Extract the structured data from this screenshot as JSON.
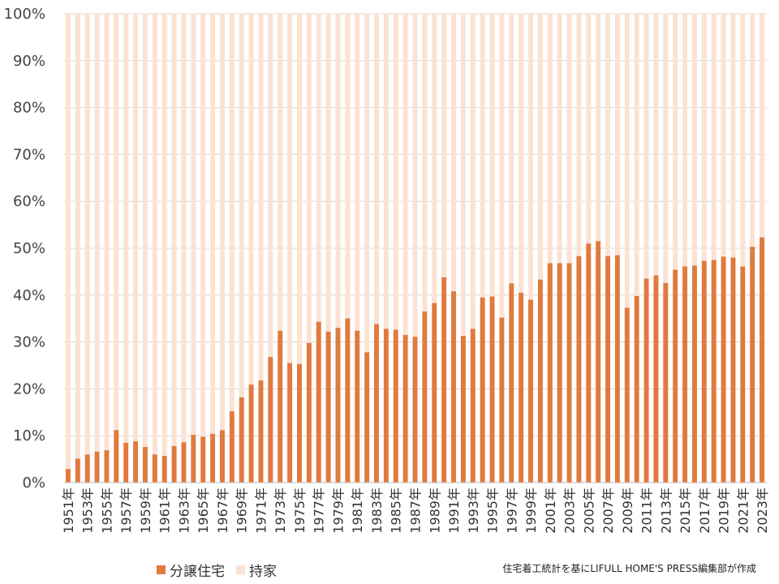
{
  "chart_data": {
    "type": "bar",
    "stacked": true,
    "percent": true,
    "categories": [
      "1951年",
      "1952年",
      "1953年",
      "1954年",
      "1955年",
      "1956年",
      "1957年",
      "1958年",
      "1959年",
      "1960年",
      "1961年",
      "1962年",
      "1963年",
      "1964年",
      "1965年",
      "1966年",
      "1967年",
      "1968年",
      "1969年",
      "1970年",
      "1971年",
      "1972年",
      "1973年",
      "1974年",
      "1975年",
      "1976年",
      "1977年",
      "1978年",
      "1979年",
      "1980年",
      "1981年",
      "1982年",
      "1983年",
      "1984年",
      "1985年",
      "1986年",
      "1987年",
      "1988年",
      "1989年",
      "1990年",
      "1991年",
      "1992年",
      "1993年",
      "1994年",
      "1995年",
      "1996年",
      "1997年",
      "1998年",
      "1999年",
      "2000年",
      "2001年",
      "2002年",
      "2003年",
      "2004年",
      "2005年",
      "2006年",
      "2007年",
      "2008年",
      "2009年",
      "2010年",
      "2011年",
      "2012年",
      "2013年",
      "2014年",
      "2015年",
      "2016年",
      "2017年",
      "2018年",
      "2019年",
      "2020年",
      "2021年",
      "2022年",
      "2023年"
    ],
    "tick_labels": [
      "1951年",
      "1953年",
      "1955年",
      "1957年",
      "1959年",
      "1961年",
      "1963年",
      "1965年",
      "1967年",
      "1969年",
      "1971年",
      "1973年",
      "1975年",
      "1977年",
      "1979年",
      "1981年",
      "1983年",
      "1985年",
      "1987年",
      "1989年",
      "1991年",
      "1993年",
      "1995年",
      "1997年",
      "1999年",
      "2001年",
      "2003年",
      "2005年",
      "2007年",
      "2009年",
      "2011年",
      "2013年",
      "2015年",
      "2017年",
      "2019年",
      "2021年",
      "2023年"
    ],
    "series": [
      {
        "name": "分譲住宅",
        "color": "#E07A3D",
        "values": [
          2.9,
          5.1,
          6.0,
          6.6,
          6.9,
          11.2,
          8.5,
          8.8,
          7.6,
          6.0,
          5.7,
          7.8,
          8.6,
          10.2,
          9.8,
          10.4,
          11.2,
          15.2,
          18.2,
          20.9,
          21.8,
          26.8,
          32.4,
          25.5,
          25.3,
          29.8,
          34.3,
          32.2,
          33.0,
          35.0,
          32.4,
          27.8,
          33.8,
          32.8,
          32.6,
          31.5,
          31.1,
          36.5,
          38.3,
          43.8,
          40.8,
          31.3,
          32.8,
          39.5,
          39.7,
          35.2,
          42.5,
          40.5,
          39.0,
          43.3,
          46.8,
          46.8,
          46.8,
          48.3,
          51.0,
          51.5,
          48.3,
          48.5,
          37.3,
          39.8,
          43.5,
          44.2,
          42.6,
          45.4,
          46.1,
          46.3,
          47.3,
          47.5,
          48.2,
          48.0,
          46.1,
          50.3,
          52.3
        ]
      },
      {
        "name": "持家",
        "color": "#FBE2D3",
        "values": [
          97.1,
          94.9,
          94.0,
          93.4,
          93.1,
          88.8,
          91.5,
          91.2,
          92.4,
          94.0,
          94.3,
          92.2,
          91.4,
          89.8,
          90.2,
          89.6,
          88.8,
          84.8,
          81.8,
          79.1,
          78.2,
          73.2,
          67.6,
          74.5,
          74.7,
          70.2,
          65.7,
          67.8,
          67.0,
          65.0,
          67.6,
          72.2,
          66.2,
          67.2,
          67.4,
          68.5,
          68.9,
          63.5,
          61.7,
          56.2,
          59.2,
          68.7,
          67.2,
          60.5,
          60.3,
          64.8,
          57.5,
          59.5,
          61.0,
          56.7,
          53.2,
          53.2,
          53.2,
          51.7,
          49.0,
          48.5,
          51.7,
          51.5,
          62.7,
          60.2,
          56.5,
          55.8,
          57.4,
          54.6,
          53.9,
          53.7,
          52.7,
          52.5,
          51.8,
          52.0,
          53.9,
          49.7,
          47.7
        ]
      }
    ],
    "ylim": [
      0,
      100
    ],
    "yticks": [
      "0%",
      "10%",
      "20%",
      "30%",
      "40%",
      "50%",
      "60%",
      "70%",
      "80%",
      "90%",
      "100%"
    ],
    "grid": true,
    "legend_position": "bottom-left"
  },
  "legend": {
    "items": [
      {
        "label": "分譲住宅",
        "color": "#E07A3D"
      },
      {
        "label": "持家",
        "color": "#FBE2D3"
      }
    ]
  },
  "credit": "住宅着工統計を基にLIFULL HOME'S PRESS編集部が作成"
}
